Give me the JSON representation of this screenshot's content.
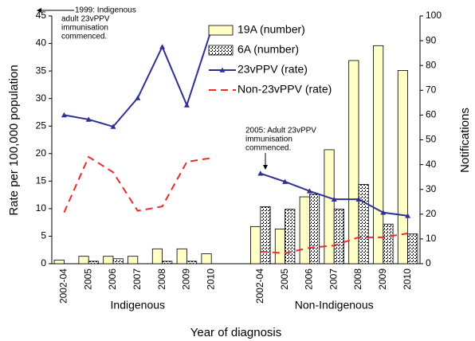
{
  "chart_data": {
    "type": "bar",
    "x_label": "Year of diagnosis",
    "y_label": "Rate per 100,000 population",
    "y2_label": "Notifications",
    "categories": [
      "2002-04",
      "2005",
      "2006",
      "2007",
      "2008",
      "2009",
      "2010",
      null,
      "2002-04",
      "2005",
      "2006",
      "2007",
      "2008",
      "2009",
      "2010"
    ],
    "groups": [
      {
        "label": "Indigenous",
        "from": 0,
        "to": 6
      },
      {
        "label": "Non-Indigenous",
        "from": 8,
        "to": 14
      }
    ],
    "ylim": [
      0,
      45
    ],
    "yticks": [
      0,
      5,
      10,
      15,
      20,
      25,
      30,
      35,
      40,
      45
    ],
    "y2lim": [
      0,
      100
    ],
    "y2ticks": [
      0,
      10,
      20,
      30,
      40,
      50,
      60,
      70,
      80,
      90,
      100
    ],
    "series": [
      {
        "name": "19A (number)",
        "type": "bar",
        "axis": "y2",
        "color": "#ffffc8",
        "values": [
          1.5,
          3,
          3,
          3,
          6,
          6,
          4,
          null,
          15,
          14,
          27,
          46,
          82,
          88,
          78
        ]
      },
      {
        "name": "6A (number)",
        "type": "bar",
        "axis": "y2",
        "color": "#000000",
        "hatch": true,
        "values": [
          0,
          1,
          2,
          0,
          1,
          1,
          0,
          null,
          23,
          22,
          28,
          22,
          32,
          16,
          12
        ]
      },
      {
        "name": "23vPPV (rate)",
        "type": "line",
        "color": "#2e3192",
        "marker": "triangle",
        "values": [
          27,
          26.2,
          24.9,
          30.1,
          39.4,
          28.8,
          42.5,
          null,
          16.4,
          14.9,
          13.2,
          11.7,
          11.7,
          9.3,
          8.7
        ]
      },
      {
        "name": "Non-23vPPV (rate)",
        "type": "line",
        "color": "#ee2a2a",
        "dash": true,
        "values": [
          9.3,
          19.4,
          16.6,
          9.6,
          10.4,
          18.5,
          19.2,
          null,
          2.2,
          1.9,
          2.9,
          3.3,
          4.8,
          4.8,
          5.5
        ]
      }
    ],
    "annotations": [
      {
        "lines": [
          "1999: Indigenous",
          "adult 23vPPV",
          "immunisation",
          "commenced."
        ]
      },
      {
        "lines": [
          "2005: Adult 23vPPV",
          "immunisation",
          "commenced."
        ]
      }
    ]
  }
}
